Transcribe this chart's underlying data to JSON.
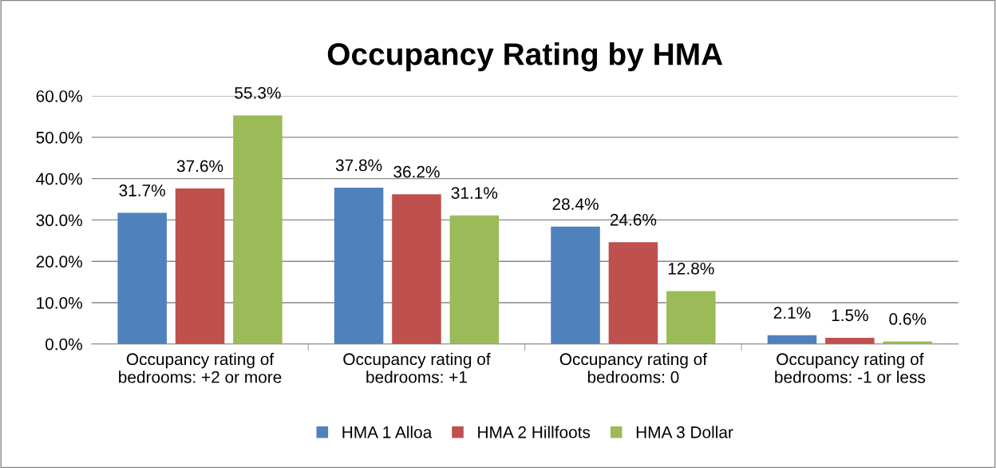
{
  "chart_data": {
    "type": "bar",
    "title": "Occupancy Rating by HMA",
    "categories": [
      "Occupancy rating of bedrooms: +2 or more",
      "Occupancy rating of bedrooms: +1",
      "Occupancy rating of bedrooms: 0",
      "Occupancy rating of bedrooms: -1 or less"
    ],
    "series": [
      {
        "name": "HMA 1 Alloa",
        "color": "#4f81bd",
        "values": [
          31.7,
          37.8,
          28.4,
          2.1
        ],
        "value_labels": [
          "31.7%",
          "37.8%",
          "28.4%",
          "2.1%"
        ]
      },
      {
        "name": "HMA 2 Hillfoots",
        "color": "#c0504d",
        "values": [
          37.6,
          36.2,
          24.6,
          1.5
        ],
        "value_labels": [
          "37.6%",
          "36.2%",
          "24.6%",
          "1.5%"
        ]
      },
      {
        "name": "HMA 3 Dollar",
        "color": "#9bbb59",
        "values": [
          55.3,
          31.1,
          12.8,
          0.6
        ],
        "value_labels": [
          "55.3%",
          "31.1%",
          "12.8%",
          "0.6%"
        ]
      }
    ],
    "ylim": [
      0,
      60
    ],
    "yticks": [
      {
        "value": 0,
        "label": "0.0%"
      },
      {
        "value": 10,
        "label": "10.0%"
      },
      {
        "value": 20,
        "label": "20.0%"
      },
      {
        "value": 30,
        "label": "30.0%"
      },
      {
        "value": 40,
        "label": "40.0%"
      },
      {
        "value": 50,
        "label": "50.0%"
      },
      {
        "value": 60,
        "label": "60.0%"
      }
    ],
    "grid": "y",
    "legend": "bottom"
  }
}
